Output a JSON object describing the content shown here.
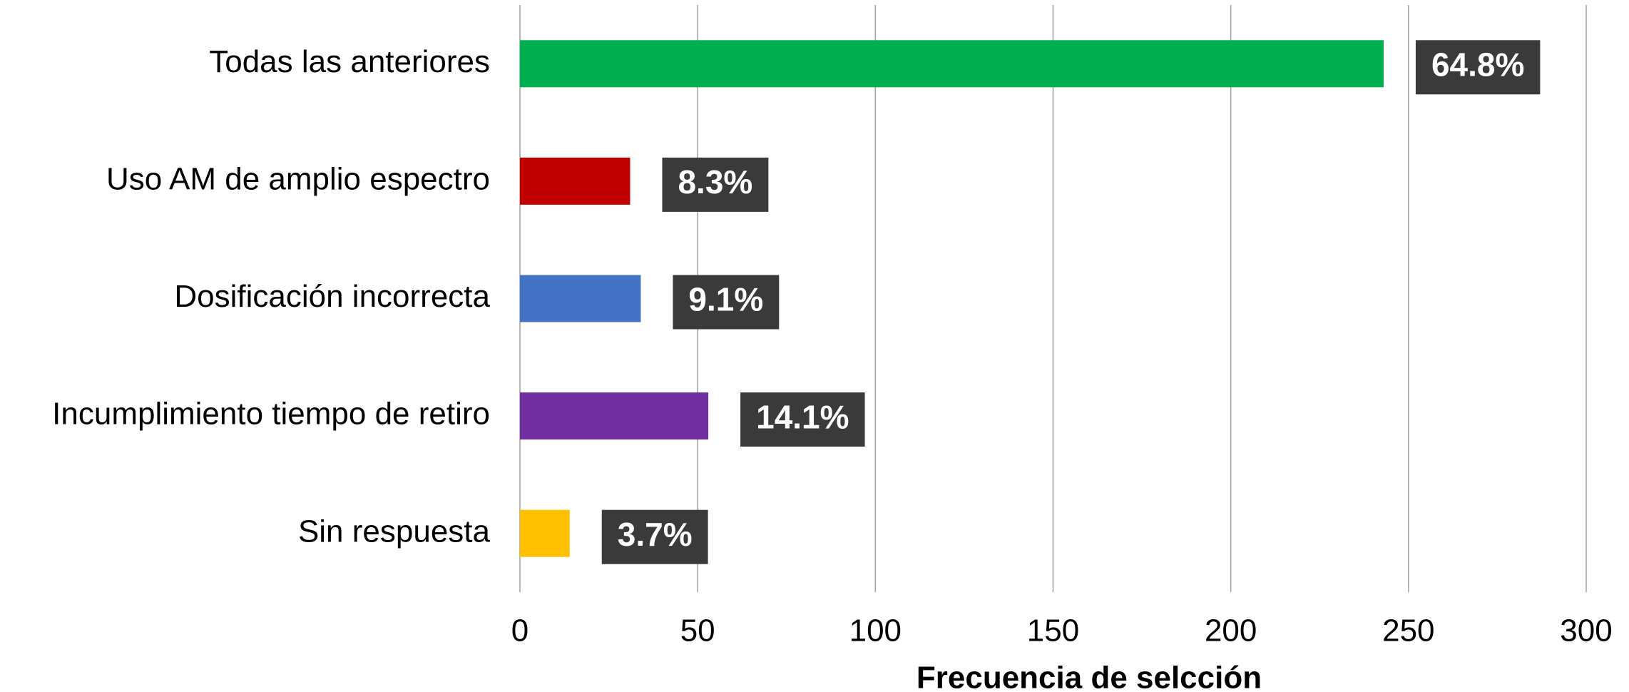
{
  "chart_data": {
    "type": "barh",
    "categories": [
      "Todas las anteriores",
      "Uso AM de amplio espectro",
      "Dosificación incorrecta",
      "Incumplimiento tiempo de retiro",
      "Sin respuesta"
    ],
    "values": [
      243,
      31,
      34,
      53,
      14
    ],
    "colors": [
      "#00b050",
      "#c00000",
      "#4472c4",
      "#7030a0",
      "#ffc000"
    ],
    "annotations": [
      "64.8%",
      "8.3%",
      "9.1%",
      "14.1%",
      "3.7%"
    ],
    "xlabel": "Frecuencia de selcción",
    "xlim": [
      0,
      300
    ],
    "xticks": [
      0,
      50,
      100,
      150,
      200,
      250,
      300
    ],
    "grid": true
  }
}
